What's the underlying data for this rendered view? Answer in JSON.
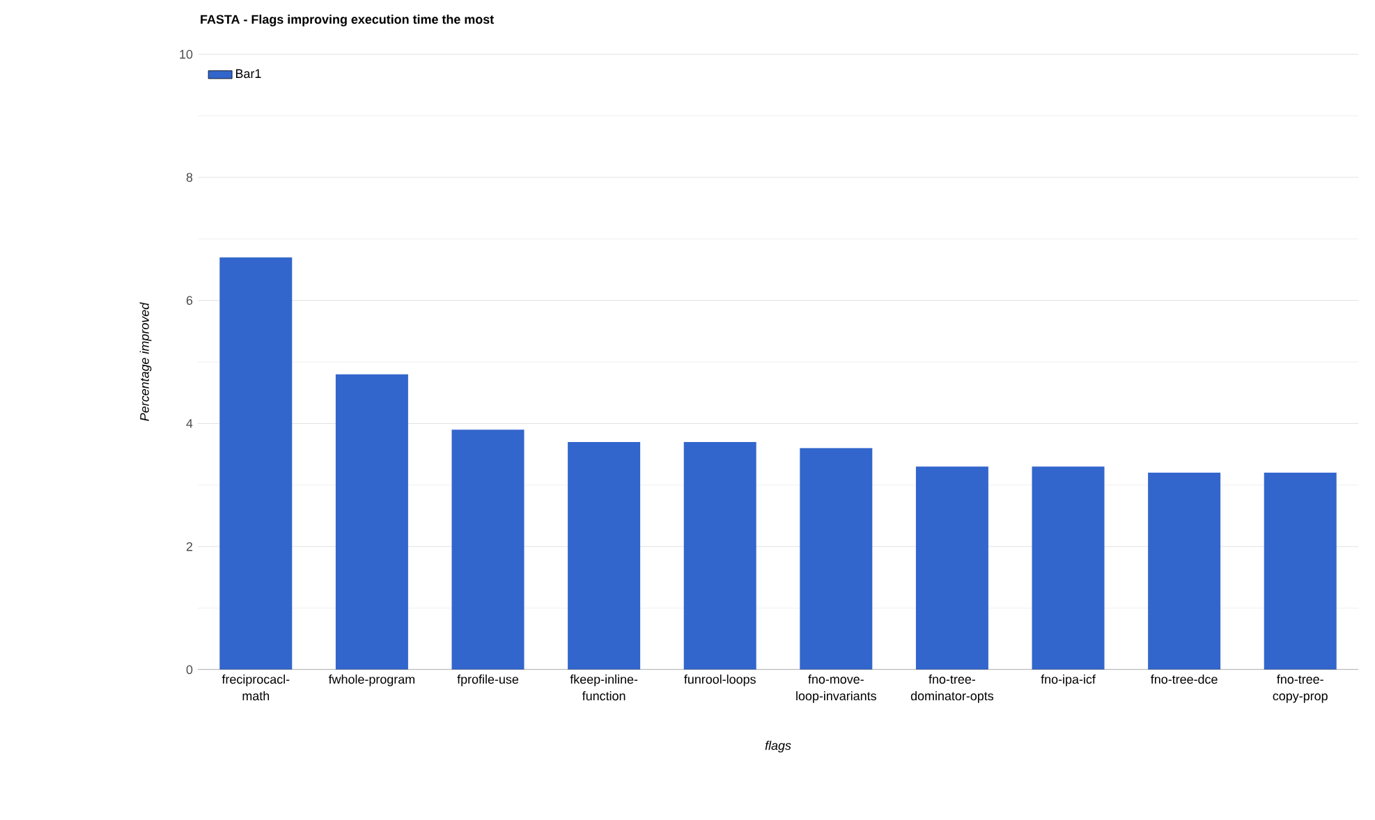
{
  "chart_data": {
    "type": "bar",
    "title": "FASTA - Flags improving execution time the most",
    "xlabel": "flags",
    "ylabel": "Percentage improved",
    "categories": [
      "freciprocacl-math",
      "fwhole-program",
      "fprofile-use",
      "fkeep-inline-function",
      "funrool-loops",
      "fno-move-loop-invariants",
      "fno-tree-dominator-opts",
      "fno-ipa-icf",
      "fno-tree-dce",
      "fno-tree-copy-prop"
    ],
    "series": [
      {
        "name": "Bar1",
        "color": "#3366cc",
        "values": [
          6.7,
          4.8,
          3.9,
          3.7,
          3.7,
          3.6,
          3.3,
          3.3,
          3.2,
          3.2
        ]
      }
    ],
    "ylim": [
      0,
      10
    ],
    "yticks": [
      0,
      2,
      4,
      6,
      8,
      10
    ],
    "grid": "y",
    "legend": "top left"
  }
}
